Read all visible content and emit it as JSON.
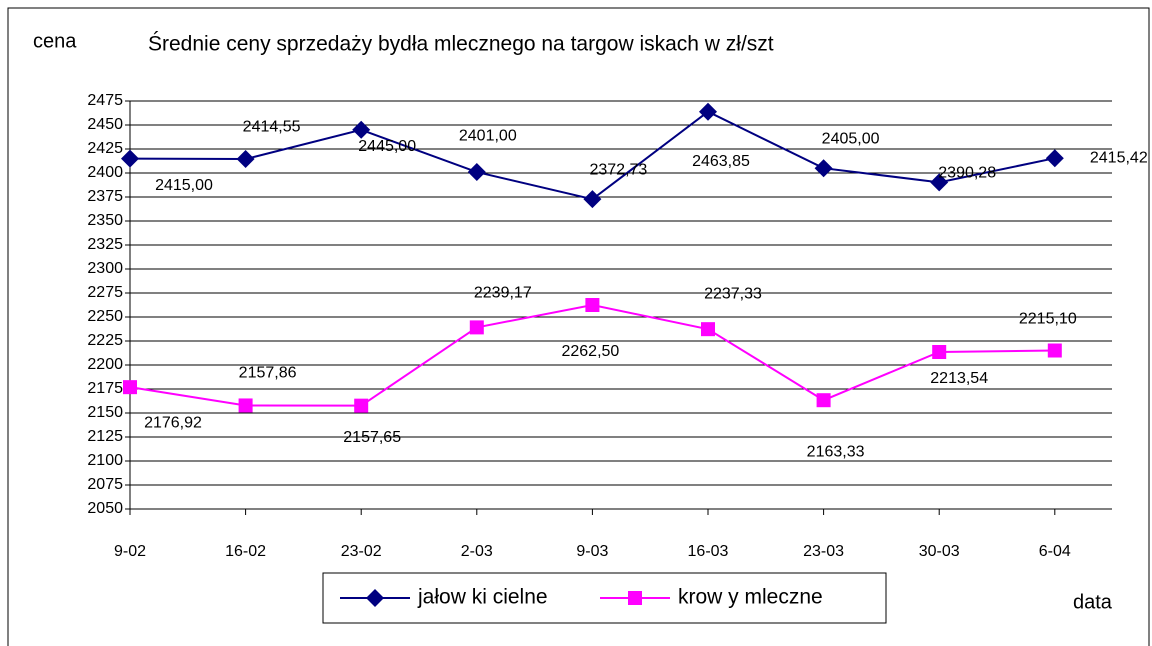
{
  "chart_data": {
    "type": "line",
    "title": "Średnie ceny sprzedaży bydła mlecznego na targow iskach w  zł/szt",
    "ylabel": "cena",
    "xlabel": "data",
    "categories": [
      "9-02",
      "16-02",
      "23-02",
      "2-03",
      "9-03",
      "16-03",
      "23-03",
      "30-03",
      "6-04"
    ],
    "series": [
      {
        "name": "jałow ki cielne",
        "color": "#000080",
        "marker": "diamond",
        "values": [
          2415.0,
          2414.55,
          2445.0,
          2401.0,
          2372.73,
          2463.85,
          2405.0,
          2390.28,
          2415.42
        ],
        "value_labels": [
          "2415,00",
          "2414,55",
          "2445,00",
          "2401,00",
          "2372,73",
          "2463,85",
          "2405,00",
          "2390,28",
          "2415,42"
        ]
      },
      {
        "name": "krow y mleczne",
        "color": "#ff00ff",
        "marker": "square",
        "values": [
          2176.92,
          2157.86,
          2157.65,
          2239.17,
          2262.5,
          2237.33,
          2163.33,
          2213.54,
          2215.1
        ],
        "value_labels": [
          "2176,92",
          "2157,86",
          "2157,65",
          "2239,17",
          "2262,50",
          "2237,33",
          "2163,33",
          "2213,54",
          "2215,10"
        ]
      }
    ],
    "ylim": [
      2050,
      2475
    ],
    "yticks": [
      2050,
      2075,
      2100,
      2125,
      2150,
      2175,
      2200,
      2225,
      2250,
      2275,
      2300,
      2325,
      2350,
      2375,
      2400,
      2425,
      2450,
      2475
    ],
    "grid": true,
    "legend": "bottom"
  }
}
